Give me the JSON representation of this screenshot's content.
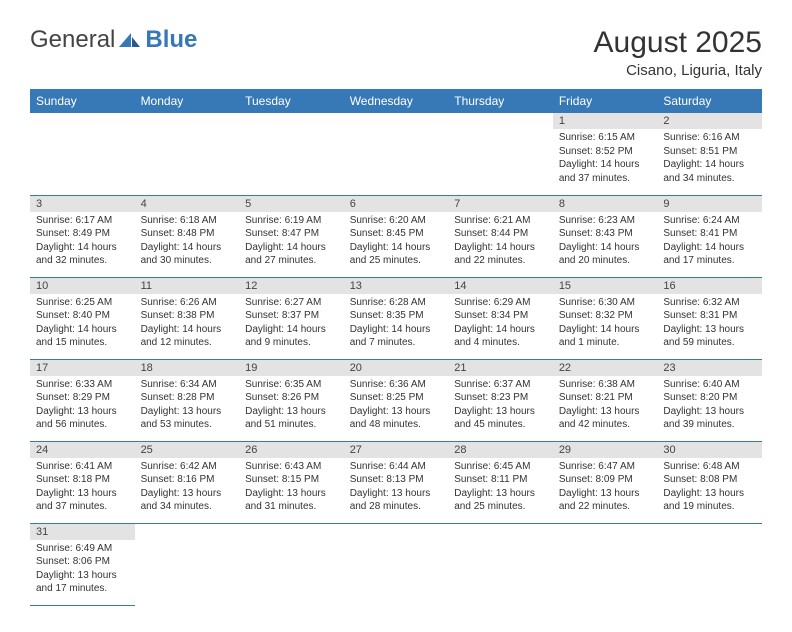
{
  "logo": {
    "word1": "General",
    "word2": "Blue"
  },
  "title": "August 2025",
  "subtitle": "Cisano, Liguria, Italy",
  "weekdays": [
    "Sunday",
    "Monday",
    "Tuesday",
    "Wednesday",
    "Thursday",
    "Friday",
    "Saturday"
  ],
  "colors": {
    "header_bg": "#3779b6",
    "daynum_bg": "#e3e3e3"
  },
  "firstWeekday": 5,
  "daysInMonth": 31,
  "days": {
    "1": {
      "sunrise": "6:15 AM",
      "sunset": "8:52 PM",
      "daylight": "14 hours and 37 minutes."
    },
    "2": {
      "sunrise": "6:16 AM",
      "sunset": "8:51 PM",
      "daylight": "14 hours and 34 minutes."
    },
    "3": {
      "sunrise": "6:17 AM",
      "sunset": "8:49 PM",
      "daylight": "14 hours and 32 minutes."
    },
    "4": {
      "sunrise": "6:18 AM",
      "sunset": "8:48 PM",
      "daylight": "14 hours and 30 minutes."
    },
    "5": {
      "sunrise": "6:19 AM",
      "sunset": "8:47 PM",
      "daylight": "14 hours and 27 minutes."
    },
    "6": {
      "sunrise": "6:20 AM",
      "sunset": "8:45 PM",
      "daylight": "14 hours and 25 minutes."
    },
    "7": {
      "sunrise": "6:21 AM",
      "sunset": "8:44 PM",
      "daylight": "14 hours and 22 minutes."
    },
    "8": {
      "sunrise": "6:23 AM",
      "sunset": "8:43 PM",
      "daylight": "14 hours and 20 minutes."
    },
    "9": {
      "sunrise": "6:24 AM",
      "sunset": "8:41 PM",
      "daylight": "14 hours and 17 minutes."
    },
    "10": {
      "sunrise": "6:25 AM",
      "sunset": "8:40 PM",
      "daylight": "14 hours and 15 minutes."
    },
    "11": {
      "sunrise": "6:26 AM",
      "sunset": "8:38 PM",
      "daylight": "14 hours and 12 minutes."
    },
    "12": {
      "sunrise": "6:27 AM",
      "sunset": "8:37 PM",
      "daylight": "14 hours and 9 minutes."
    },
    "13": {
      "sunrise": "6:28 AM",
      "sunset": "8:35 PM",
      "daylight": "14 hours and 7 minutes."
    },
    "14": {
      "sunrise": "6:29 AM",
      "sunset": "8:34 PM",
      "daylight": "14 hours and 4 minutes."
    },
    "15": {
      "sunrise": "6:30 AM",
      "sunset": "8:32 PM",
      "daylight": "14 hours and 1 minute."
    },
    "16": {
      "sunrise": "6:32 AM",
      "sunset": "8:31 PM",
      "daylight": "13 hours and 59 minutes."
    },
    "17": {
      "sunrise": "6:33 AM",
      "sunset": "8:29 PM",
      "daylight": "13 hours and 56 minutes."
    },
    "18": {
      "sunrise": "6:34 AM",
      "sunset": "8:28 PM",
      "daylight": "13 hours and 53 minutes."
    },
    "19": {
      "sunrise": "6:35 AM",
      "sunset": "8:26 PM",
      "daylight": "13 hours and 51 minutes."
    },
    "20": {
      "sunrise": "6:36 AM",
      "sunset": "8:25 PM",
      "daylight": "13 hours and 48 minutes."
    },
    "21": {
      "sunrise": "6:37 AM",
      "sunset": "8:23 PM",
      "daylight": "13 hours and 45 minutes."
    },
    "22": {
      "sunrise": "6:38 AM",
      "sunset": "8:21 PM",
      "daylight": "13 hours and 42 minutes."
    },
    "23": {
      "sunrise": "6:40 AM",
      "sunset": "8:20 PM",
      "daylight": "13 hours and 39 minutes."
    },
    "24": {
      "sunrise": "6:41 AM",
      "sunset": "8:18 PM",
      "daylight": "13 hours and 37 minutes."
    },
    "25": {
      "sunrise": "6:42 AM",
      "sunset": "8:16 PM",
      "daylight": "13 hours and 34 minutes."
    },
    "26": {
      "sunrise": "6:43 AM",
      "sunset": "8:15 PM",
      "daylight": "13 hours and 31 minutes."
    },
    "27": {
      "sunrise": "6:44 AM",
      "sunset": "8:13 PM",
      "daylight": "13 hours and 28 minutes."
    },
    "28": {
      "sunrise": "6:45 AM",
      "sunset": "8:11 PM",
      "daylight": "13 hours and 25 minutes."
    },
    "29": {
      "sunrise": "6:47 AM",
      "sunset": "8:09 PM",
      "daylight": "13 hours and 22 minutes."
    },
    "30": {
      "sunrise": "6:48 AM",
      "sunset": "8:08 PM",
      "daylight": "13 hours and 19 minutes."
    },
    "31": {
      "sunrise": "6:49 AM",
      "sunset": "8:06 PM",
      "daylight": "13 hours and 17 minutes."
    }
  }
}
